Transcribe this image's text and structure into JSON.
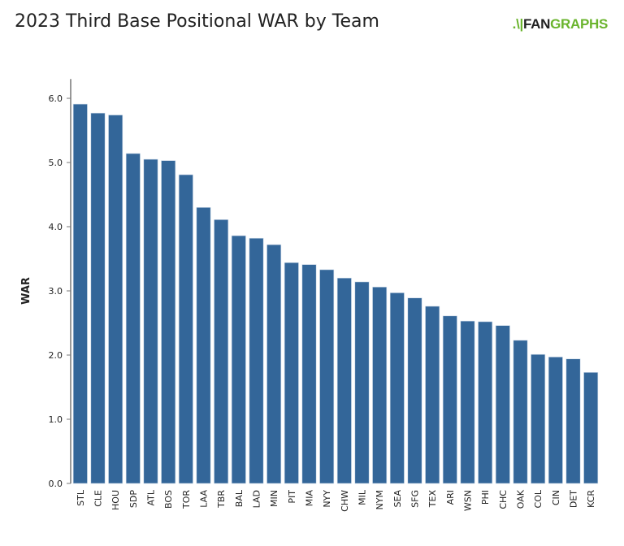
{
  "title": "2023 Third Base Positional WAR by Team",
  "logo": {
    "text_a": "FAN",
    "text_b": "GRAPHS"
  },
  "chart_data": {
    "type": "bar",
    "title": "2023 Third Base Positional WAR by Team",
    "xlabel": "",
    "ylabel": "WAR",
    "ylim": [
      0,
      6.3
    ],
    "yticks": [
      "0.0",
      "1.0",
      "2.0",
      "3.0",
      "4.0",
      "5.0",
      "6.0"
    ],
    "grid": false,
    "color": "#336699",
    "categories": [
      "STL",
      "CLE",
      "HOU",
      "SDP",
      "ATL",
      "BOS",
      "TOR",
      "LAA",
      "TBR",
      "BAL",
      "LAD",
      "MIN",
      "PIT",
      "MIA",
      "NYY",
      "CHW",
      "MIL",
      "NYM",
      "SEA",
      "SFG",
      "TEX",
      "ARI",
      "WSN",
      "PHI",
      "CHC",
      "OAK",
      "COL",
      "CIN",
      "DET",
      "KCR"
    ],
    "values": [
      5.91,
      5.77,
      5.74,
      5.14,
      5.05,
      5.03,
      4.81,
      4.3,
      4.11,
      3.86,
      3.82,
      3.72,
      3.44,
      3.41,
      3.33,
      3.2,
      3.14,
      3.06,
      2.97,
      2.89,
      2.76,
      2.61,
      2.53,
      2.52,
      2.46,
      2.23,
      2.01,
      1.97,
      1.94,
      1.73
    ]
  }
}
